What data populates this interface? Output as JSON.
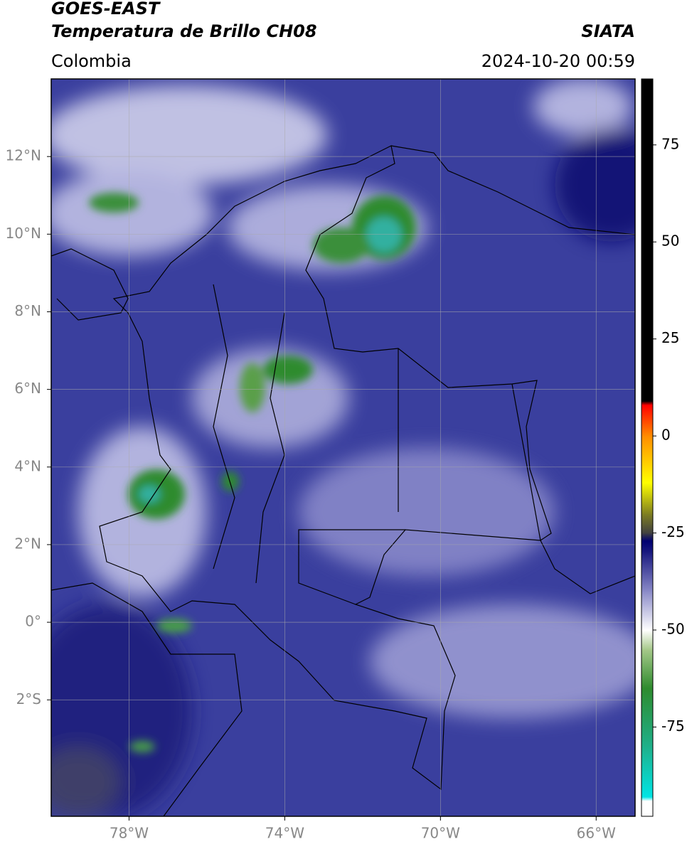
{
  "header": {
    "title": "GOES-EAST",
    "subtitle": "Temperatura de Brillo CH08",
    "source": "SIATA",
    "region": "Colombia",
    "datetime": "2024-10-20 00:59"
  },
  "map": {
    "xlim": [
      -80,
      -65
    ],
    "ylim": [
      -5,
      14
    ],
    "xticks": [
      {
        "value": -78,
        "label": "78°W"
      },
      {
        "value": -74,
        "label": "74°W"
      },
      {
        "value": -70,
        "label": "70°W"
      },
      {
        "value": -66,
        "label": "66°W"
      }
    ],
    "yticks": [
      {
        "value": 12,
        "label": "12°N"
      },
      {
        "value": 10,
        "label": "10°N"
      },
      {
        "value": 8,
        "label": "8°N"
      },
      {
        "value": 6,
        "label": "6°N"
      },
      {
        "value": 4,
        "label": "4°N"
      },
      {
        "value": 2,
        "label": "2°N"
      },
      {
        "value": 0,
        "label": "0°"
      },
      {
        "value": -2,
        "label": "2°S"
      }
    ],
    "grid": true
  },
  "colorbar": {
    "clim": [
      -98,
      92
    ],
    "ticks": [
      75,
      50,
      25,
      0,
      -25,
      -50,
      -75
    ],
    "colormap": [
      {
        "value": -98,
        "color": "#ffffff"
      },
      {
        "value": -94,
        "color": "#ffffff"
      },
      {
        "value": -93,
        "color": "#00e5e5"
      },
      {
        "value": -80,
        "color": "#1fb08a"
      },
      {
        "value": -65,
        "color": "#2e8b2e"
      },
      {
        "value": -55,
        "color": "#a6c98a"
      },
      {
        "value": -50,
        "color": "#ffffff"
      },
      {
        "value": -40,
        "color": "#8a8ac8"
      },
      {
        "value": -30,
        "color": "#1a1a80"
      },
      {
        "value": -27,
        "color": "#000070"
      },
      {
        "value": -25,
        "color": "#404040"
      },
      {
        "value": -20,
        "color": "#808020"
      },
      {
        "value": -12,
        "color": "#ffff00"
      },
      {
        "value": 0,
        "color": "#ff8c00"
      },
      {
        "value": 8,
        "color": "#ff0000"
      },
      {
        "value": 9,
        "color": "#000000"
      },
      {
        "value": 92,
        "color": "#000000"
      }
    ]
  }
}
